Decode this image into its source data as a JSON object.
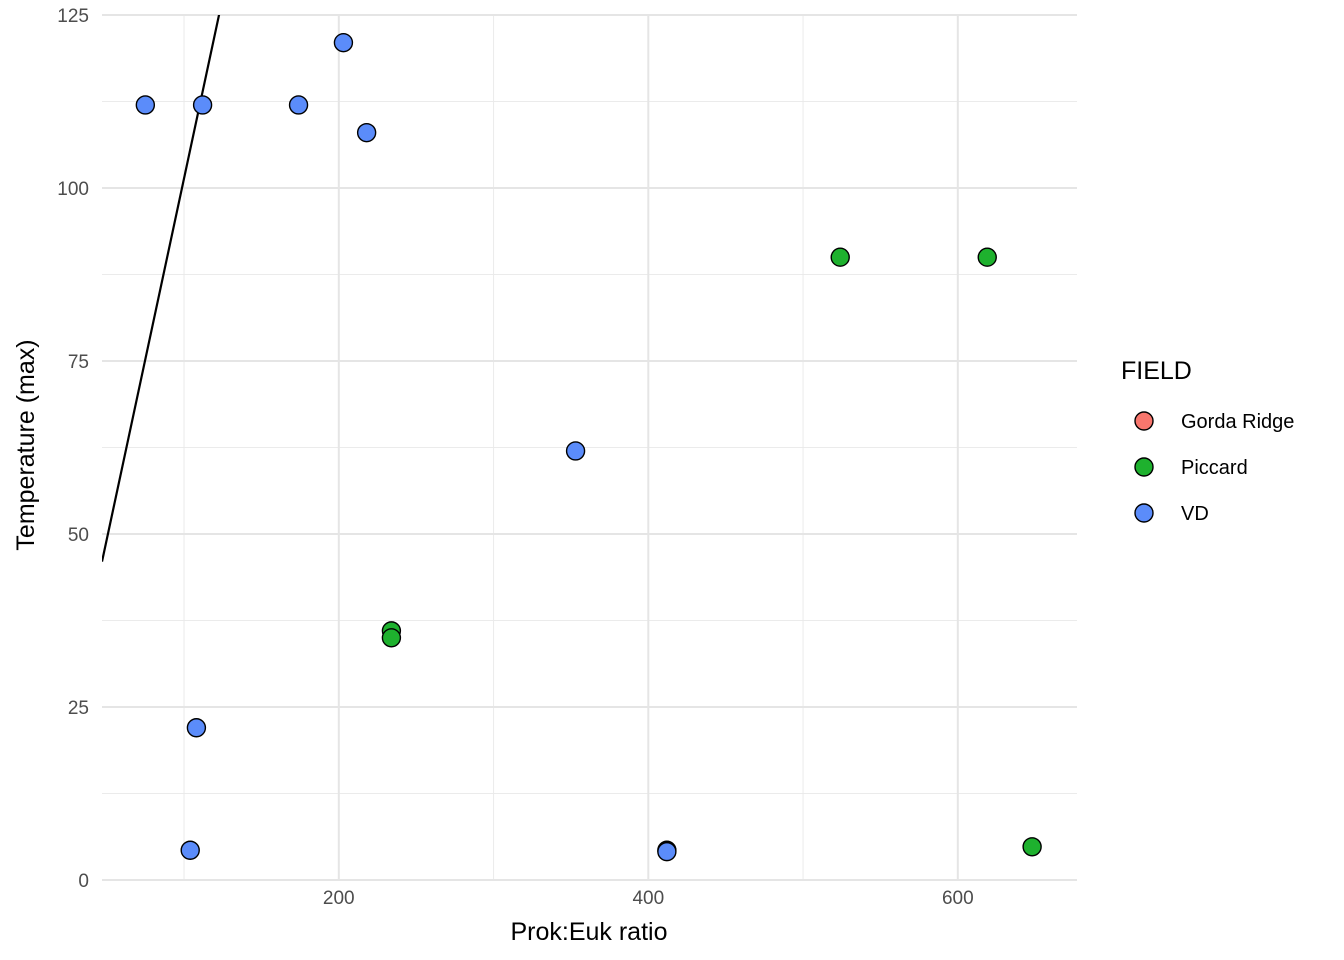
{
  "chart_data": {
    "type": "scatter",
    "xlabel": "Prok:Euk ratio",
    "ylabel": "Temperature (max)",
    "xlim": [
      47,
      677
    ],
    "ylim": [
      0,
      125
    ],
    "xticks": [
      200,
      400,
      600
    ],
    "xtick_labels": [
      "200",
      "400",
      "600"
    ],
    "x_minor_breaks": [
      100,
      300,
      500
    ],
    "yticks": [
      0,
      25,
      50,
      75,
      100,
      125
    ],
    "ytick_labels": [
      "0",
      "25",
      "50",
      "75",
      "100",
      "125"
    ],
    "y_minor_breaks": [
      12.5,
      37.5,
      62.5,
      87.5,
      112.5
    ],
    "grid": true,
    "legend": {
      "title": "FIELD",
      "placement": "right"
    },
    "series": [
      {
        "name": "Gorda Ridge",
        "color": "#F8766D",
        "points": []
      },
      {
        "name": "Piccard",
        "color": "#1EB12E",
        "points": [
          {
            "x": 234,
            "y": 36
          },
          {
            "x": 234,
            "y": 35
          },
          {
            "x": 524,
            "y": 90
          },
          {
            "x": 619,
            "y": 90
          },
          {
            "x": 648,
            "y": 4.8
          }
        ]
      },
      {
        "name": "VD",
        "color": "#5B8CFA",
        "points": [
          {
            "x": 75,
            "y": 112
          },
          {
            "x": 112,
            "y": 112
          },
          {
            "x": 174,
            "y": 112
          },
          {
            "x": 203,
            "y": 121
          },
          {
            "x": 218,
            "y": 108
          },
          {
            "x": 353,
            "y": 62
          },
          {
            "x": 108,
            "y": 22
          },
          {
            "x": 104,
            "y": 4.3
          },
          {
            "x": 412,
            "y": 4.3
          },
          {
            "x": 412,
            "y": 4.1
          }
        ]
      }
    ],
    "trend_line": {
      "x1": 47,
      "y1": 46,
      "x2": 125,
      "y2": 127.5,
      "color": "#000000"
    }
  }
}
